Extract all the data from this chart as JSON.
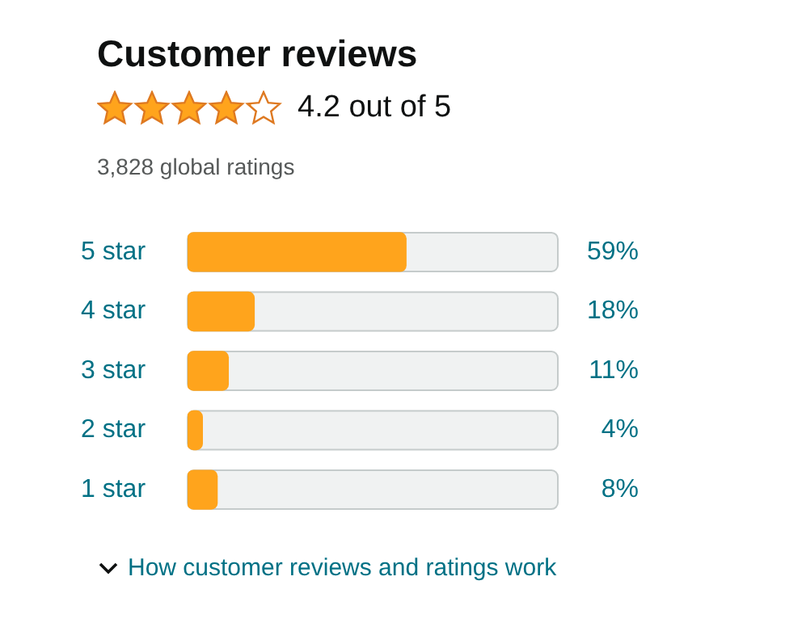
{
  "chart_data": {
    "type": "bar",
    "orientation": "horizontal",
    "title": "Customer reviews",
    "subtitle": "4.2 out of 5",
    "annotations": [
      "3,828 global ratings",
      "How customer reviews and ratings work"
    ],
    "categories": [
      "5 star",
      "4 star",
      "3 star",
      "2 star",
      "1 star"
    ],
    "values": [
      59,
      18,
      11,
      4,
      8
    ],
    "value_labels": [
      "59%",
      "18%",
      "11%",
      "4%",
      "8%"
    ],
    "color": "#ffa41c",
    "xlim": [
      0,
      100
    ],
    "tick_labels": "y"
  }
}
